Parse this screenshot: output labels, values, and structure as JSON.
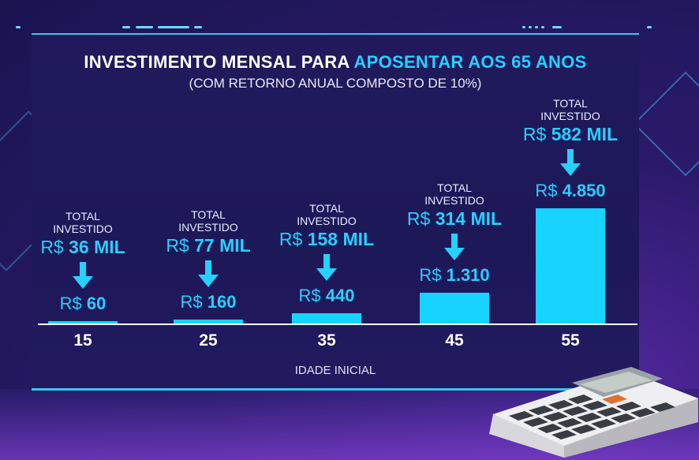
{
  "title_part1": "INVESTIMENTO MENSAL PARA ",
  "title_part2": "APOSENTAR AOS 65 ANOS",
  "subtitle": "(COM RETORNO ANUAL COMPOSTO DE 10%)",
  "xlabel": "IDADE INICIAL",
  "total_label": "TOTAL INVESTIDO",
  "currency": "R$",
  "colors": {
    "bar": "#16d4ff",
    "accent": "#26d0ff",
    "panel": "#201a5c"
  },
  "chart_data": {
    "type": "bar",
    "title": "INVESTIMENTO MENSAL PARA APOSENTAR AOS 65 ANOS",
    "subtitle": "(COM RETORNO ANUAL COMPOSTO DE 10%)",
    "xlabel": "IDADE INICIAL",
    "ylabel": "",
    "categories": [
      "15",
      "25",
      "35",
      "45",
      "55"
    ],
    "values": [
      60,
      160,
      440,
      1310,
      4850
    ],
    "value_labels": [
      "60",
      "160",
      "440",
      "1.310",
      "4.850"
    ],
    "total_invested": [
      "36 MIL",
      "77 MIL",
      "158 MIL",
      "314 MIL",
      "582 MIL"
    ],
    "ylim": [
      0,
      4850
    ],
    "grid": false
  }
}
